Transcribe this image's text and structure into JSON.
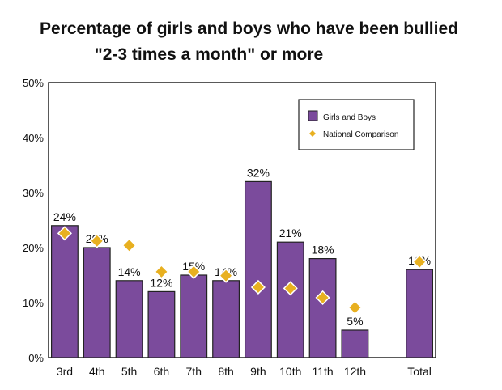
{
  "chart_data": {
    "type": "bar",
    "title": "Percentage of girls and boys who have been bullied",
    "subtitle": "\"2-3 times a month\" or more",
    "xlabel": "",
    "ylabel": "",
    "ylim": [
      0,
      50
    ],
    "yticks": [
      "0%",
      "10%",
      "20%",
      "30%",
      "40%",
      "50%"
    ],
    "grid": false,
    "legend_position": "top-right",
    "categories": [
      "3rd",
      "4th",
      "5th",
      "6th",
      "7th",
      "8th",
      "9th",
      "10th",
      "11th",
      "12th",
      "",
      "Total"
    ],
    "series": [
      {
        "name": "Girls and Boys",
        "type": "bar",
        "color": "#7b4b9c",
        "values": [
          24,
          20,
          14,
          12,
          15,
          14,
          32,
          21,
          18,
          5,
          null,
          16
        ],
        "labels": [
          "24%",
          "20%",
          "14%",
          "12%",
          "15%",
          "14%",
          "32%",
          "21%",
          "18%",
          "5%",
          "",
          "16%"
        ]
      },
      {
        "name": "National Comparison",
        "type": "scatter",
        "marker": "diamond",
        "color": "#e8b020",
        "values": [
          22.6,
          21.2,
          20.4,
          15.6,
          15.6,
          14.9,
          12.8,
          12.6,
          10.9,
          9.1,
          null,
          17.4
        ]
      }
    ]
  }
}
